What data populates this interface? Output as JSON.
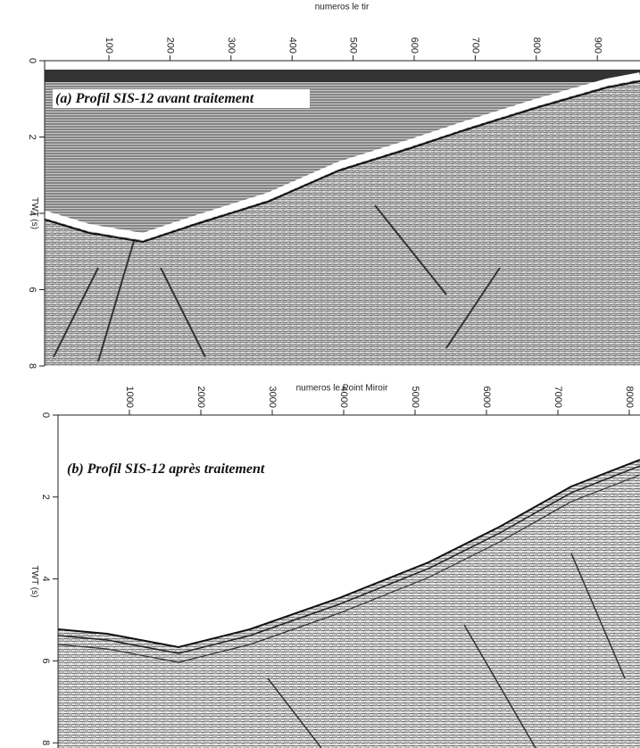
{
  "panels": [
    {
      "title": "(a) Profil SIS-12 avant traitement",
      "x_label": "numeros  le tir",
      "y_label": "TWT (s)",
      "xticks": [
        100,
        200,
        300,
        400,
        500,
        600,
        700,
        800,
        900
      ],
      "yticks": [
        0,
        2,
        4,
        6,
        8
      ]
    },
    {
      "title": "(b) Profil SIS-12 après traitement",
      "x_label": "numeros  le Point Miroir",
      "y_label": "TWT (s)",
      "xticks": [
        1000,
        2000,
        3000,
        4000,
        5000,
        6000,
        7000,
        8000
      ],
      "yticks": [
        0,
        2,
        4,
        6,
        8
      ]
    }
  ]
}
